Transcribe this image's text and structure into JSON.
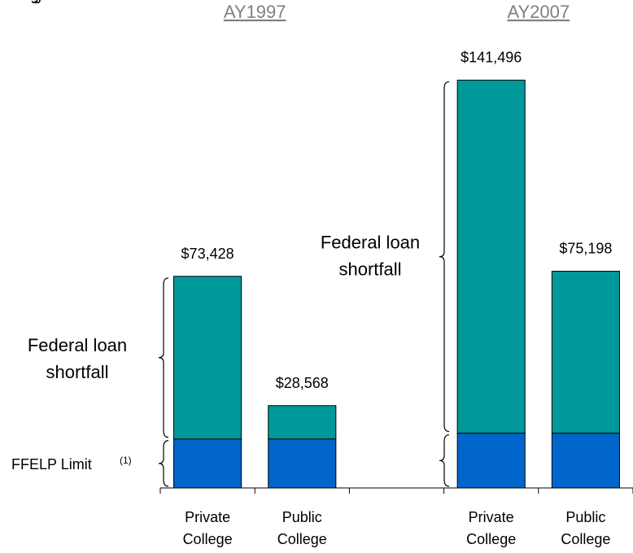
{
  "chart_data": {
    "type": "stacked_bar",
    "group_titles": [
      "AY1997",
      "AY2007"
    ],
    "categories": [
      "Private College",
      "Public College",
      null,
      "Private College",
      "Public College"
    ],
    "series": [
      {
        "name": "FFELP Limit",
        "color": "#0066cc",
        "values": [
          17000,
          17000,
          null,
          19000,
          19000
        ]
      },
      {
        "name": "Federal loan shortfall",
        "color": "#009999",
        "values": [
          56428,
          11568,
          null,
          122496,
          56198
        ]
      }
    ],
    "totals": [
      73428,
      28568,
      null,
      141496,
      75198
    ],
    "total_labels": [
      "$73,428",
      "$28,568",
      null,
      "$141,496",
      "$75,198"
    ],
    "annotations": {
      "shortfall_1997": "Federal loan shortfall",
      "shortfall_2007": "Federal loan shortfall",
      "ffelp": "FFELP Limit",
      "ffelp_note": "(1)"
    },
    "ylim": [
      0,
      160000
    ]
  }
}
